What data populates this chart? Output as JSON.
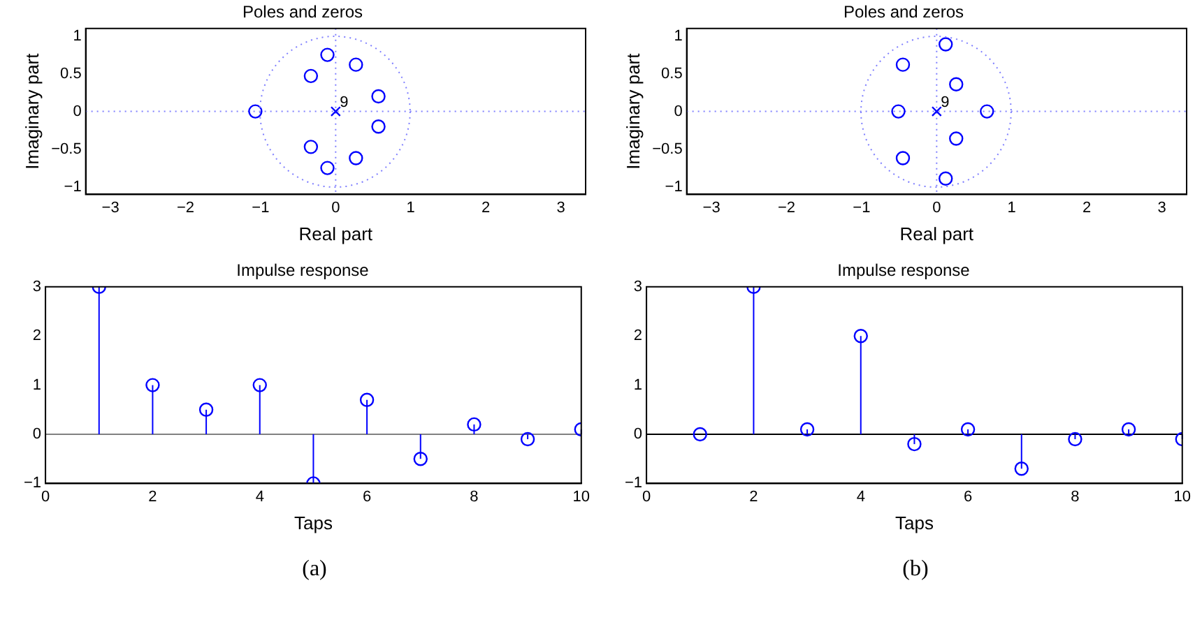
{
  "chart_data": [
    {
      "type": "scatter",
      "title": "Poles and zeros",
      "xlabel": "Real part",
      "ylabel": "Imaginary part",
      "xlim": [
        -3.33,
        3.33
      ],
      "xticks": [
        -3,
        -2,
        -1,
        0,
        1,
        2,
        3
      ],
      "ylim": [
        -1.1,
        1.1
      ],
      "yticks": [
        -1,
        -0.5,
        0,
        0.5,
        1
      ],
      "legend": false,
      "series": [
        {
          "type": "scatter",
          "marker": "circle",
          "color": "#0000ff",
          "x": [
            -1.07,
            -0.33,
            -0.33,
            -0.11,
            -0.11,
            0.27,
            0.27,
            0.57,
            0.57
          ],
          "values": [
            0,
            0.47,
            -0.47,
            0.75,
            -0.75,
            0.62,
            -0.62,
            0.2,
            -0.2
          ]
        },
        {
          "type": "scatter",
          "marker": "cross",
          "color": "#0000ff",
          "x": [
            0
          ],
          "values": [
            0
          ]
        }
      ],
      "ref_lines": [
        {
          "axis": "x",
          "value": 0,
          "color": "#8080ff",
          "line_style": "dotted"
        },
        {
          "axis": "y",
          "value": 0,
          "color": "#8080ff",
          "line_style": "dotted"
        }
      ],
      "annotations": [
        {
          "text": "9",
          "x": 0,
          "y": 0
        }
      ]
    },
    {
      "type": "scatter",
      "title": "Poles and zeros",
      "xlabel": "Real part",
      "ylabel": "Imaginary part",
      "xlim": [
        -3.33,
        3.33
      ],
      "xticks": [
        -3,
        -2,
        -1,
        0,
        1,
        2,
        3
      ],
      "ylim": [
        -1.1,
        1.1
      ],
      "yticks": [
        -1,
        -0.5,
        0,
        0.5,
        1
      ],
      "legend": false,
      "series": [
        {
          "type": "scatter",
          "marker": "circle",
          "color": "#0000ff",
          "x": [
            0.12,
            0.12,
            -0.45,
            -0.45,
            -0.51,
            0.67,
            0.26,
            0.26
          ],
          "values": [
            0.89,
            -0.89,
            0.62,
            -0.62,
            0,
            0,
            0.36,
            -0.36
          ]
        },
        {
          "type": "scatter",
          "marker": "cross",
          "color": "#0000ff",
          "x": [
            0
          ],
          "values": [
            0
          ]
        }
      ],
      "ref_lines": [
        {
          "axis": "x",
          "value": 0,
          "color": "#8080ff",
          "line_style": "dotted"
        },
        {
          "axis": "y",
          "value": 0,
          "color": "#8080ff",
          "line_style": "dotted"
        }
      ],
      "annotations": [
        {
          "text": "9",
          "x": 0,
          "y": 0
        }
      ]
    },
    {
      "type": "lollipop",
      "title": "Impulse response",
      "xlabel": "Taps",
      "xlim": [
        0,
        10
      ],
      "xticks": [
        0,
        2,
        4,
        6,
        8,
        10
      ],
      "ylim": [
        -1,
        3
      ],
      "yticks": [
        -1,
        0,
        1,
        2,
        3
      ],
      "legend": false,
      "marker": "circle",
      "series": [
        {
          "color": "#0000ff",
          "x": [
            1,
            2,
            3,
            4,
            5,
            6,
            7,
            8,
            9,
            10
          ],
          "values": [
            3,
            1,
            0.5,
            1,
            -1,
            0.7,
            -0.5,
            0.2,
            -0.1,
            0.1
          ]
        }
      ],
      "ref_lines": [
        {
          "axis": "y",
          "value": 0,
          "color": "#808080",
          "line_style": "solid"
        }
      ],
      "annotations": [
        "(a)"
      ]
    },
    {
      "type": "lollipop",
      "title": "Impulse response",
      "xlabel": "Taps",
      "xlim": [
        0,
        10
      ],
      "xticks": [
        0,
        2,
        4,
        6,
        8,
        10
      ],
      "ylim": [
        -1,
        3
      ],
      "yticks": [
        -1,
        0,
        1,
        2,
        3
      ],
      "legend": false,
      "marker": "circle",
      "series": [
        {
          "color": "#0000ff",
          "x": [
            1,
            2,
            3,
            4,
            5,
            6,
            7,
            8,
            9,
            10
          ],
          "values": [
            0,
            3,
            0.1,
            2,
            -0.2,
            0.1,
            -0.7,
            -0.1,
            0.1,
            -0.1
          ]
        }
      ],
      "ref_lines": [
        {
          "axis": "y",
          "value": 0,
          "color": "#000000",
          "line_style": "solid"
        }
      ],
      "annotations": [
        "(b)"
      ]
    }
  ]
}
